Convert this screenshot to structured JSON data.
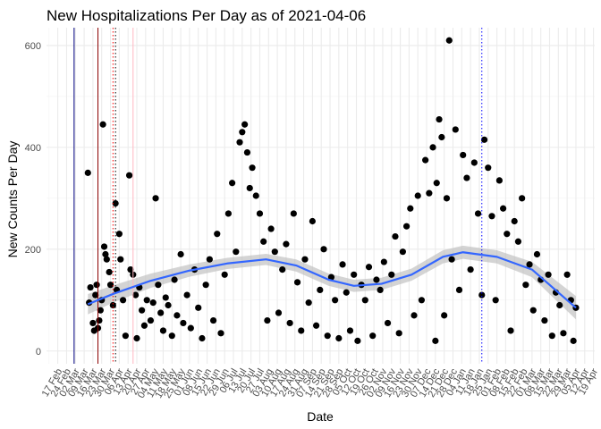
{
  "chart_data": {
    "type": "scatter",
    "title": "New Hospitalizations Per Day as of 2021-04-06",
    "xlabel": "Date",
    "ylabel": "New Counts Per Day",
    "ylim": [
      -25,
      635
    ],
    "xlim": [
      "2020-02-08",
      "2021-04-20"
    ],
    "grid": true,
    "y_ticks": [
      0,
      200,
      400,
      600
    ],
    "x_ticks": [
      {
        "label": "17 Feb",
        "date": "2020-02-17"
      },
      {
        "label": "02 Mar",
        "date": "2020-03-02"
      },
      {
        "label": "16 Mar",
        "date": "2020-03-16"
      },
      {
        "label": "30 Mar",
        "date": "2020-03-30"
      },
      {
        "label": "13 Apr",
        "date": "2020-04-13"
      },
      {
        "label": "27 Apr",
        "date": "2020-04-27"
      },
      {
        "label": "11 May",
        "date": "2020-05-11"
      },
      {
        "label": "25 May",
        "date": "2020-05-25"
      },
      {
        "label": "08 Jun",
        "date": "2020-06-08"
      },
      {
        "label": "22 Jun",
        "date": "2020-06-22"
      },
      {
        "label": "06 Jul",
        "date": "2020-07-06"
      },
      {
        "label": "20 Jul",
        "date": "2020-07-20"
      },
      {
        "label": "03 Aug",
        "date": "2020-08-03"
      },
      {
        "label": "17 Aug",
        "date": "2020-08-17"
      },
      {
        "label": "31 Aug",
        "date": "2020-08-31"
      },
      {
        "label": "14 Sep",
        "date": "2020-09-14"
      },
      {
        "label": "28 Sep",
        "date": "2020-09-28"
      },
      {
        "label": "12 Oct",
        "date": "2020-10-12"
      },
      {
        "label": "26 Oct",
        "date": "2020-10-26"
      },
      {
        "label": "09 Nov",
        "date": "2020-11-09"
      },
      {
        "label": "23 Nov",
        "date": "2020-11-23"
      },
      {
        "label": "07 Dec",
        "date": "2020-12-07"
      },
      {
        "label": "21 Dec",
        "date": "2020-12-21"
      },
      {
        "label": "04 Jan",
        "date": "2021-01-04"
      },
      {
        "label": "18 Jan",
        "date": "2021-01-18"
      },
      {
        "label": "01 Feb",
        "date": "2021-02-01"
      },
      {
        "label": "15 Feb",
        "date": "2021-02-15"
      },
      {
        "label": "01 Mar",
        "date": "2021-03-01"
      },
      {
        "label": "15 Mar",
        "date": "2021-03-15"
      },
      {
        "label": "29 Mar",
        "date": "2021-03-29"
      },
      {
        "label": "12 Apr",
        "date": "2021-04-12"
      }
    ],
    "x_ticks_secondary": [
      {
        "label": "24 Feb",
        "date": "2020-02-24"
      },
      {
        "label": "09 Mar",
        "date": "2020-03-09"
      },
      {
        "label": "23 Mar",
        "date": "2020-03-23"
      },
      {
        "label": "06 Apr",
        "date": "2020-04-06"
      },
      {
        "label": "20 Apr",
        "date": "2020-04-20"
      },
      {
        "label": "04 May",
        "date": "2020-05-04"
      },
      {
        "label": "18 May",
        "date": "2020-05-18"
      },
      {
        "label": "01 Jun",
        "date": "2020-06-01"
      },
      {
        "label": "15 Jun",
        "date": "2020-06-15"
      },
      {
        "label": "29 Jun",
        "date": "2020-06-29"
      },
      {
        "label": "13 Jul",
        "date": "2020-07-13"
      },
      {
        "label": "27 Jul",
        "date": "2020-07-27"
      },
      {
        "label": "10 Aug",
        "date": "2020-08-10"
      },
      {
        "label": "24 Aug",
        "date": "2020-08-24"
      },
      {
        "label": "07 Sep",
        "date": "2020-09-07"
      },
      {
        "label": "21 Sep",
        "date": "2020-09-21"
      },
      {
        "label": "05 Oct",
        "date": "2020-10-05"
      },
      {
        "label": "19 Oct",
        "date": "2020-10-19"
      },
      {
        "label": "02 Nov",
        "date": "2020-11-02"
      },
      {
        "label": "16 Nov",
        "date": "2020-11-16"
      },
      {
        "label": "30 Nov",
        "date": "2020-11-30"
      },
      {
        "label": "14 Dec",
        "date": "2020-12-14"
      },
      {
        "label": "28 Dec",
        "date": "2020-12-28"
      },
      {
        "label": "11 Jan",
        "date": "2021-01-11"
      },
      {
        "label": "25 Jan",
        "date": "2021-01-25"
      },
      {
        "label": "08 Feb",
        "date": "2021-02-08"
      },
      {
        "label": "22 Feb",
        "date": "2021-02-22"
      },
      {
        "label": "08 Mar",
        "date": "2021-03-08"
      },
      {
        "label": "22 Mar",
        "date": "2021-03-22"
      },
      {
        "label": "05 Apr",
        "date": "2021-04-05"
      },
      {
        "label": "19 Apr",
        "date": "2021-04-19"
      }
    ],
    "reference_lines": [
      {
        "date": "2020-03-01",
        "color": "#000080",
        "style": "solid"
      },
      {
        "date": "2020-03-20",
        "color": "#8b0000",
        "style": "solid"
      },
      {
        "date": "2020-04-01",
        "color": "#ff0000",
        "style": "dotted"
      },
      {
        "date": "2020-04-03",
        "color": "#000000",
        "style": "dotted"
      },
      {
        "date": "2020-04-17",
        "color": "#ffb6c1",
        "style": "solid"
      },
      {
        "date": "2021-01-20",
        "color": "#0000ff",
        "style": "dotted"
      }
    ],
    "series": [
      {
        "type": "scatter",
        "color": "#000000",
        "points": [
          [
            "2020-03-12",
            350
          ],
          [
            "2020-03-13",
            95
          ],
          [
            "2020-03-14",
            125
          ],
          [
            "2020-03-16",
            55
          ],
          [
            "2020-03-17",
            40
          ],
          [
            "2020-03-18",
            110
          ],
          [
            "2020-03-19",
            130
          ],
          [
            "2020-03-20",
            45
          ],
          [
            "2020-03-21",
            60
          ],
          [
            "2020-03-22",
            80
          ],
          [
            "2020-03-23",
            100
          ],
          [
            "2020-03-24",
            445
          ],
          [
            "2020-03-25",
            205
          ],
          [
            "2020-03-26",
            190
          ],
          [
            "2020-03-27",
            180
          ],
          [
            "2020-03-29",
            155
          ],
          [
            "2020-03-30",
            130
          ],
          [
            "2020-04-01",
            90
          ],
          [
            "2020-04-03",
            290
          ],
          [
            "2020-04-04",
            120
          ],
          [
            "2020-04-06",
            230
          ],
          [
            "2020-04-07",
            180
          ],
          [
            "2020-04-09",
            100
          ],
          [
            "2020-04-11",
            30
          ],
          [
            "2020-04-14",
            345
          ],
          [
            "2020-04-15",
            160
          ],
          [
            "2020-04-17",
            150
          ],
          [
            "2020-04-19",
            110
          ],
          [
            "2020-04-20",
            25
          ],
          [
            "2020-04-22",
            125
          ],
          [
            "2020-04-24",
            80
          ],
          [
            "2020-04-26",
            50
          ],
          [
            "2020-04-28",
            100
          ],
          [
            "2020-05-01",
            60
          ],
          [
            "2020-05-03",
            95
          ],
          [
            "2020-05-05",
            300
          ],
          [
            "2020-05-07",
            130
          ],
          [
            "2020-05-09",
            75
          ],
          [
            "2020-05-11",
            40
          ],
          [
            "2020-05-13",
            105
          ],
          [
            "2020-05-15",
            90
          ],
          [
            "2020-05-18",
            30
          ],
          [
            "2020-05-20",
            140
          ],
          [
            "2020-05-22",
            70
          ],
          [
            "2020-05-25",
            190
          ],
          [
            "2020-05-27",
            55
          ],
          [
            "2020-05-30",
            110
          ],
          [
            "2020-06-02",
            45
          ],
          [
            "2020-06-05",
            160
          ],
          [
            "2020-06-08",
            85
          ],
          [
            "2020-06-11",
            25
          ],
          [
            "2020-06-14",
            130
          ],
          [
            "2020-06-17",
            180
          ],
          [
            "2020-06-20",
            60
          ],
          [
            "2020-06-23",
            230
          ],
          [
            "2020-06-26",
            35
          ],
          [
            "2020-06-29",
            150
          ],
          [
            "2020-07-02",
            270
          ],
          [
            "2020-07-05",
            330
          ],
          [
            "2020-07-08",
            195
          ],
          [
            "2020-07-11",
            410
          ],
          [
            "2020-07-13",
            430
          ],
          [
            "2020-07-15",
            445
          ],
          [
            "2020-07-17",
            390
          ],
          [
            "2020-07-19",
            320
          ],
          [
            "2020-07-21",
            360
          ],
          [
            "2020-07-24",
            305
          ],
          [
            "2020-07-27",
            270
          ],
          [
            "2020-07-30",
            215
          ],
          [
            "2020-08-02",
            60
          ],
          [
            "2020-08-05",
            240
          ],
          [
            "2020-08-08",
            195
          ],
          [
            "2020-08-11",
            75
          ],
          [
            "2020-08-14",
            160
          ],
          [
            "2020-08-17",
            210
          ],
          [
            "2020-08-20",
            55
          ],
          [
            "2020-08-23",
            270
          ],
          [
            "2020-08-26",
            135
          ],
          [
            "2020-08-29",
            40
          ],
          [
            "2020-09-01",
            180
          ],
          [
            "2020-09-04",
            95
          ],
          [
            "2020-09-07",
            255
          ],
          [
            "2020-09-10",
            50
          ],
          [
            "2020-09-13",
            120
          ],
          [
            "2020-09-16",
            200
          ],
          [
            "2020-09-19",
            30
          ],
          [
            "2020-09-22",
            145
          ],
          [
            "2020-09-25",
            100
          ],
          [
            "2020-09-28",
            25
          ],
          [
            "2020-10-01",
            170
          ],
          [
            "2020-10-04",
            115
          ],
          [
            "2020-10-07",
            40
          ],
          [
            "2020-10-10",
            150
          ],
          [
            "2020-10-13",
            20
          ],
          [
            "2020-10-16",
            130
          ],
          [
            "2020-10-19",
            100
          ],
          [
            "2020-10-22",
            165
          ],
          [
            "2020-10-25",
            30
          ],
          [
            "2020-10-28",
            140
          ],
          [
            "2020-10-31",
            120
          ],
          [
            "2020-11-03",
            175
          ],
          [
            "2020-11-06",
            55
          ],
          [
            "2020-11-09",
            150
          ],
          [
            "2020-11-12",
            225
          ],
          [
            "2020-11-15",
            35
          ],
          [
            "2020-11-18",
            195
          ],
          [
            "2020-11-21",
            245
          ],
          [
            "2020-11-24",
            280
          ],
          [
            "2020-11-27",
            70
          ],
          [
            "2020-11-30",
            305
          ],
          [
            "2020-12-03",
            100
          ],
          [
            "2020-12-06",
            375
          ],
          [
            "2020-12-09",
            310
          ],
          [
            "2020-12-12",
            400
          ],
          [
            "2020-12-14",
            20
          ],
          [
            "2020-12-15",
            330
          ],
          [
            "2020-12-17",
            455
          ],
          [
            "2020-12-19",
            420
          ],
          [
            "2020-12-21",
            70
          ],
          [
            "2020-12-23",
            300
          ],
          [
            "2020-12-25",
            610
          ],
          [
            "2020-12-27",
            180
          ],
          [
            "2020-12-30",
            435
          ],
          [
            "2021-01-02",
            120
          ],
          [
            "2021-01-05",
            385
          ],
          [
            "2021-01-08",
            340
          ],
          [
            "2021-01-11",
            160
          ],
          [
            "2021-01-14",
            370
          ],
          [
            "2021-01-17",
            270
          ],
          [
            "2021-01-20",
            110
          ],
          [
            "2021-01-22",
            415
          ],
          [
            "2021-01-25",
            360
          ],
          [
            "2021-01-28",
            265
          ],
          [
            "2021-01-31",
            100
          ],
          [
            "2021-02-03",
            335
          ],
          [
            "2021-02-06",
            280
          ],
          [
            "2021-02-09",
            230
          ],
          [
            "2021-02-12",
            40
          ],
          [
            "2021-02-15",
            255
          ],
          [
            "2021-02-18",
            215
          ],
          [
            "2021-02-21",
            300
          ],
          [
            "2021-02-24",
            130
          ],
          [
            "2021-02-27",
            170
          ],
          [
            "2021-03-02",
            80
          ],
          [
            "2021-03-05",
            190
          ],
          [
            "2021-03-08",
            140
          ],
          [
            "2021-03-11",
            60
          ],
          [
            "2021-03-14",
            150
          ],
          [
            "2021-03-17",
            30
          ],
          [
            "2021-03-20",
            115
          ],
          [
            "2021-03-23",
            90
          ],
          [
            "2021-03-26",
            35
          ],
          [
            "2021-03-29",
            150
          ],
          [
            "2021-04-01",
            100
          ],
          [
            "2021-04-03",
            20
          ],
          [
            "2021-04-05",
            85
          ]
        ]
      },
      {
        "type": "smooth",
        "color": "#3366ff",
        "band_color": "#bdbdbd",
        "points": [
          [
            "2020-03-12",
            92,
            72,
            112
          ],
          [
            "2020-04-01",
            112,
            95,
            129
          ],
          [
            "2020-05-01",
            138,
            124,
            152
          ],
          [
            "2020-06-01",
            158,
            146,
            170
          ],
          [
            "2020-07-01",
            172,
            161,
            183
          ],
          [
            "2020-08-01",
            180,
            169,
            191
          ],
          [
            "2020-08-25",
            168,
            156,
            180
          ],
          [
            "2020-09-20",
            140,
            128,
            152
          ],
          [
            "2020-10-10",
            128,
            116,
            140
          ],
          [
            "2020-11-01",
            132,
            120,
            144
          ],
          [
            "2020-11-25",
            150,
            138,
            162
          ],
          [
            "2020-12-20",
            185,
            172,
            198
          ],
          [
            "2021-01-05",
            194,
            181,
            207
          ],
          [
            "2021-02-01",
            185,
            172,
            198
          ],
          [
            "2021-03-01",
            160,
            145,
            175
          ],
          [
            "2021-04-05",
            85,
            62,
            108
          ]
        ]
      }
    ]
  }
}
